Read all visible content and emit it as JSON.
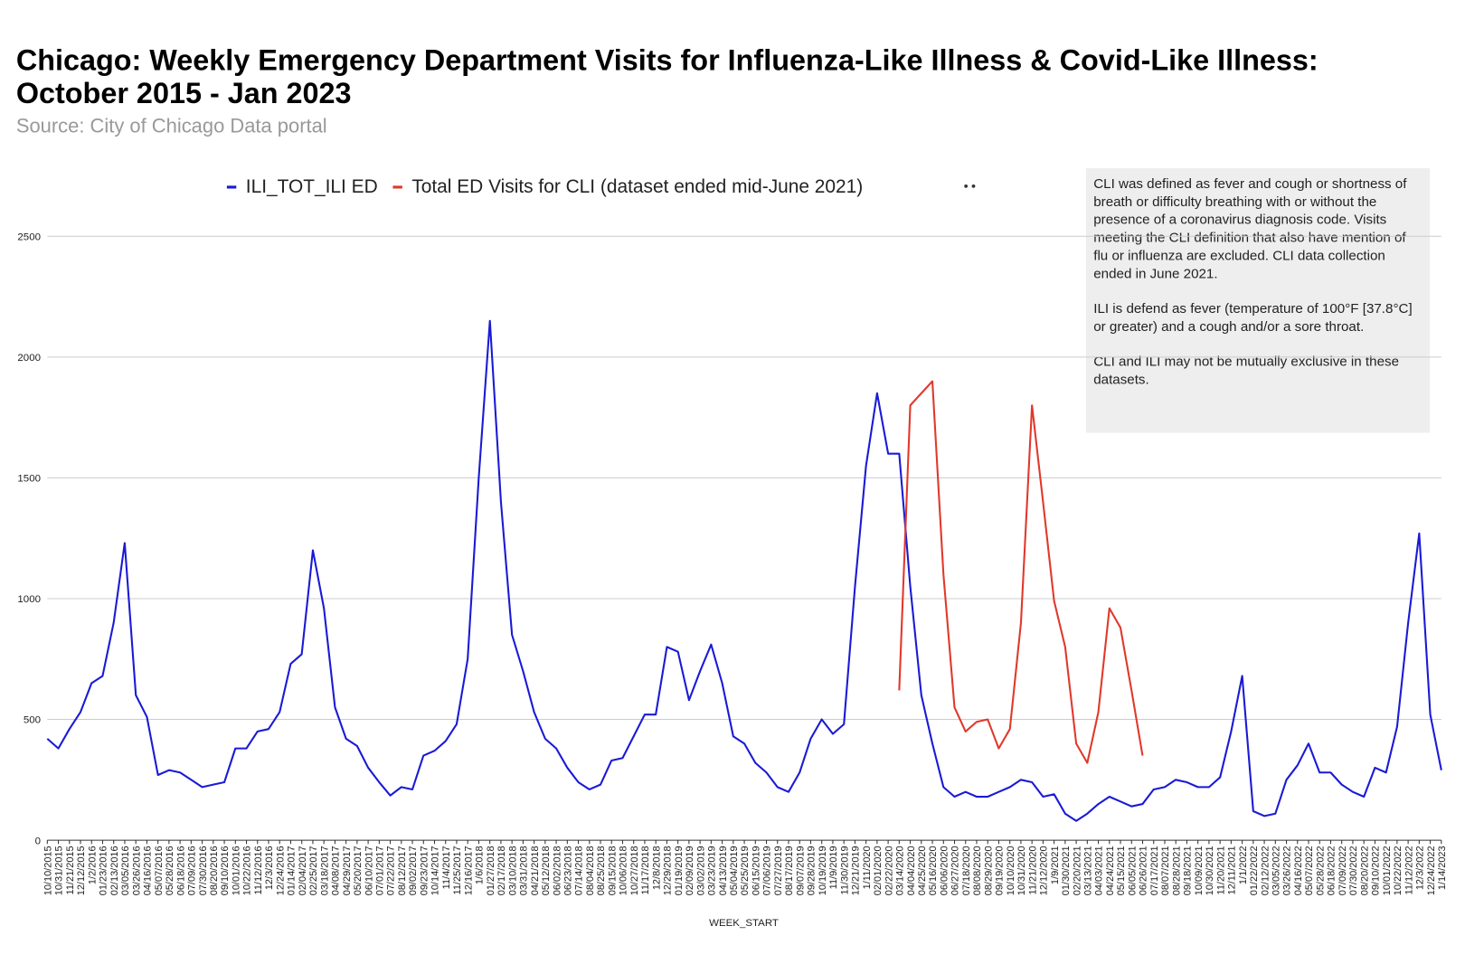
{
  "chart_data": {
    "type": "line",
    "title": "Chicago: Weekly Emergency Department Visits for Influenza-Like Illness & Covid-Like Illness: October 2015 - Jan 2023",
    "subtitle": "Source: City of Chicago Data portal",
    "x_label": "WEEK_START",
    "annotation": [
      "CLI was defined as fever and cough or shortness of breath or difficulty breathing with or without the presence of a coronavirus diagnosis code. Visits meeting the CLI definition that also have mention of flu or influenza are excluded. CLI data collection ended in June 2021.",
      "ILI is defend as fever (temperature of 100°F [37.8°C] or greater) and a cough and/or a sore throat.",
      "CLI and ILI may not be mutually exclusive in these datasets."
    ],
    "categories": [
      "10/10/2015",
      "10/31/2015",
      "11/21/2015",
      "12/12/2015",
      "1/2/2016",
      "01/23/2016",
      "02/13/2016",
      "03/05/2016",
      "03/26/2016",
      "04/16/2016",
      "05/07/2016",
      "05/28/2016",
      "06/18/2016",
      "07/09/2016",
      "07/30/2016",
      "08/20/2016",
      "09/10/2016",
      "10/01/2016",
      "10/22/2016",
      "11/12/2016",
      "12/3/2016",
      "12/24/2016",
      "01/14/2017",
      "02/04/2017",
      "02/25/2017",
      "03/18/2017",
      "04/08/2017",
      "04/29/2017",
      "05/20/2017",
      "06/10/2017",
      "07/01/2017",
      "07/22/2017",
      "08/12/2017",
      "09/02/2017",
      "09/23/2017",
      "10/14/2017",
      "11/4/2017",
      "11/25/2017",
      "12/16/2017",
      "1/6/2018",
      "01/27/2018",
      "02/17/2018",
      "03/10/2018",
      "03/31/2018",
      "04/21/2018",
      "05/12/2018",
      "06/02/2018",
      "06/23/2018",
      "07/14/2018",
      "08/04/2018",
      "08/25/2018",
      "09/15/2018",
      "10/06/2018",
      "10/27/2018",
      "11/17/2018",
      "12/8/2018",
      "12/29/2018",
      "01/19/2019",
      "02/09/2019",
      "03/02/2019",
      "03/23/2019",
      "04/13/2019",
      "05/04/2019",
      "05/25/2019",
      "06/15/2019",
      "07/06/2019",
      "07/27/2019",
      "08/17/2019",
      "09/07/2019",
      "09/28/2019",
      "10/19/2019",
      "11/9/2019",
      "11/30/2019",
      "12/21/2019",
      "1/11/2020",
      "02/01/2020",
      "02/22/2020",
      "03/14/2020",
      "04/04/2020",
      "04/25/2020",
      "05/16/2020",
      "06/06/2020",
      "06/27/2020",
      "07/18/2020",
      "08/08/2020",
      "08/29/2020",
      "09/19/2020",
      "10/10/2020",
      "10/31/2020",
      "11/21/2020",
      "12/12/2020",
      "1/9/2021",
      "01/30/2021",
      "02/20/2021",
      "03/13/2021",
      "04/03/2021",
      "04/24/2021",
      "05/15/2021",
      "06/05/2021",
      "06/26/2021",
      "07/17/2021",
      "08/07/2021",
      "08/28/2021",
      "09/18/2021",
      "10/09/2021",
      "10/30/2021",
      "11/20/2021",
      "12/11/2021",
      "1/1/2022",
      "01/22/2022",
      "02/12/2022",
      "03/05/2022",
      "03/26/2022",
      "04/16/2022",
      "05/07/2022",
      "05/28/2022",
      "06/18/2022",
      "07/09/2022",
      "07/30/2022",
      "08/20/2022",
      "09/10/2022",
      "10/01/2022",
      "10/22/2022",
      "11/12/2022",
      "12/3/2022",
      "12/24/2022",
      "1/14/2023"
    ],
    "series": [
      {
        "name": "ILI_TOT_ILI ED",
        "color": "#1a1ad6",
        "values": [
          420,
          380,
          460,
          530,
          650,
          680,
          900,
          1230,
          600,
          510,
          270,
          290,
          280,
          250,
          220,
          230,
          240,
          380,
          380,
          450,
          460,
          530,
          730,
          770,
          1200,
          960,
          550,
          420,
          390,
          300,
          240,
          185,
          220,
          210,
          350,
          370,
          410,
          480,
          750,
          1500,
          2150,
          1400,
          850,
          700,
          530,
          420,
          380,
          300,
          240,
          210,
          230,
          330,
          340,
          430,
          520,
          520,
          800,
          780,
          580,
          700,
          810,
          650,
          430,
          400,
          320,
          280,
          220,
          200,
          280,
          420,
          500,
          440,
          480,
          1050,
          1550,
          1850,
          1600,
          1600,
          1050,
          600,
          400,
          220,
          180,
          200,
          180,
          180,
          200,
          220,
          250,
          240,
          180,
          190,
          110,
          80,
          110,
          150,
          180,
          160,
          140,
          150,
          210,
          220,
          250,
          240,
          220,
          220,
          260,
          450,
          680,
          120,
          100,
          110,
          250,
          310,
          400,
          280,
          280,
          230,
          200,
          180,
          300,
          280,
          470,
          900,
          1270,
          520,
          290
        ]
      },
      {
        "name": "Total ED Visits for CLI (dataset ended mid-June 2021)",
        "color": "#e0392b",
        "values": [
          null,
          null,
          null,
          null,
          null,
          null,
          null,
          null,
          null,
          null,
          null,
          null,
          null,
          null,
          null,
          null,
          null,
          null,
          null,
          null,
          null,
          null,
          null,
          null,
          null,
          null,
          null,
          null,
          null,
          null,
          null,
          null,
          null,
          null,
          null,
          null,
          null,
          null,
          null,
          null,
          null,
          null,
          null,
          null,
          null,
          null,
          null,
          null,
          null,
          null,
          null,
          null,
          null,
          null,
          null,
          null,
          null,
          null,
          null,
          null,
          null,
          null,
          null,
          null,
          null,
          null,
          null,
          null,
          null,
          null,
          null,
          null,
          null,
          null,
          null,
          null,
          null,
          620,
          1800,
          1850,
          1900,
          1100,
          550,
          450,
          490,
          500,
          380,
          460,
          900,
          1800,
          1400,
          990,
          800,
          400,
          320,
          530,
          960,
          880,
          620,
          350,
          null,
          null,
          null,
          null,
          null,
          null,
          null,
          null,
          null,
          null,
          null,
          null,
          null,
          null,
          null,
          null,
          null,
          null,
          null,
          null,
          null,
          null,
          null,
          null,
          null,
          null,
          null
        ]
      }
    ],
    "ylim": [
      0,
      2500
    ],
    "yticks": [
      0,
      500,
      1000,
      1500,
      2000,
      2500
    ],
    "grid": true,
    "legend": "top"
  }
}
